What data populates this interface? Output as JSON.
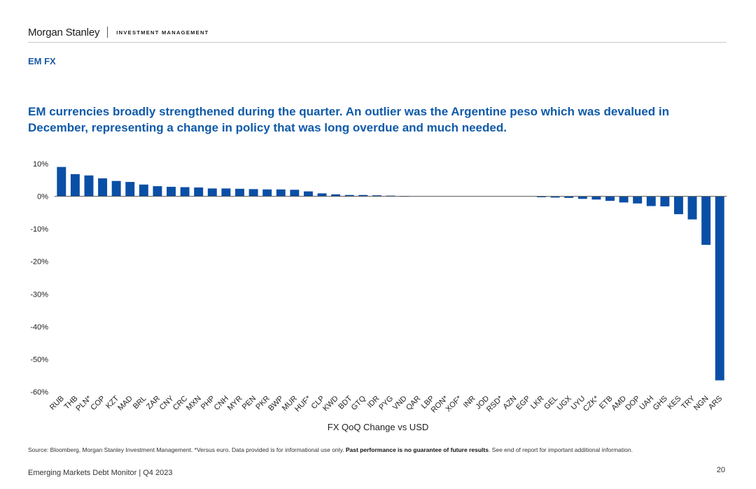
{
  "header": {
    "brand": "Morgan Stanley",
    "division": "INVESTMENT MANAGEMENT"
  },
  "section_title": "EM FX",
  "headline": "EM currencies broadly strengthened during the quarter. An outlier was the Argentine peso which was devalued in December, representing a change in policy that was long overdue and much needed.",
  "colors": {
    "bar": "#0a4fa6",
    "text_blue": "#0f5aa8"
  },
  "chart_data": {
    "type": "bar",
    "title": "",
    "xlabel": "FX QoQ Change vs USD",
    "ylabel": "",
    "ylim": [
      -60,
      10
    ],
    "yticks": [
      10,
      0,
      -10,
      -20,
      -30,
      -40,
      -50,
      -60
    ],
    "ytick_labels": [
      "10%",
      "0%",
      "-10%",
      "-20%",
      "-30%",
      "-40%",
      "-50%",
      "-60%"
    ],
    "grid": false,
    "categories": [
      "RUB",
      "THB",
      "PLN*",
      "COP",
      "KZT",
      "MAD",
      "BRL",
      "ZAR",
      "CNY",
      "CRC",
      "MXN",
      "PHP",
      "CNH",
      "MYR",
      "PEN",
      "PKR",
      "BWP",
      "MUR",
      "HUF*",
      "CLP",
      "KWD",
      "BDT",
      "GTQ",
      "IDR",
      "PYG",
      "VND",
      "QAR",
      "LBP",
      "RON*",
      "XOF*",
      "INR",
      "JOD",
      "RSD*",
      "AZN",
      "EGP",
      "LKR",
      "GEL",
      "UGX",
      "UYU",
      "CZK*",
      "ETB",
      "AMD",
      "DOP",
      "UAH",
      "GHS",
      "KES",
      "TRY",
      "NGN",
      "ARS"
    ],
    "values": [
      9.0,
      6.8,
      6.4,
      5.5,
      4.7,
      4.4,
      3.6,
      3.1,
      2.9,
      2.8,
      2.7,
      2.4,
      2.4,
      2.3,
      2.2,
      2.1,
      2.1,
      2.0,
      1.5,
      0.9,
      0.6,
      0.4,
      0.4,
      0.3,
      0.2,
      0.1,
      0.0,
      0.0,
      0.0,
      0.0,
      0.0,
      0.0,
      0.0,
      0.0,
      0.0,
      -0.3,
      -0.4,
      -0.5,
      -0.8,
      -1.0,
      -1.4,
      -1.9,
      -2.2,
      -3.0,
      -3.1,
      -5.5,
      -7.1,
      -14.9,
      -56.5
    ]
  },
  "source": {
    "prefix": "Source: Bloomberg, Morgan Stanley Investment Management. *Versus euro. Data provided is for informational use only. ",
    "bold": "Past performance is no guarantee of future results",
    "suffix": ". See end of report for important additional information."
  },
  "footer": {
    "report": "Emerging Markets Debt Monitor | Q4 2023",
    "page": "20"
  }
}
